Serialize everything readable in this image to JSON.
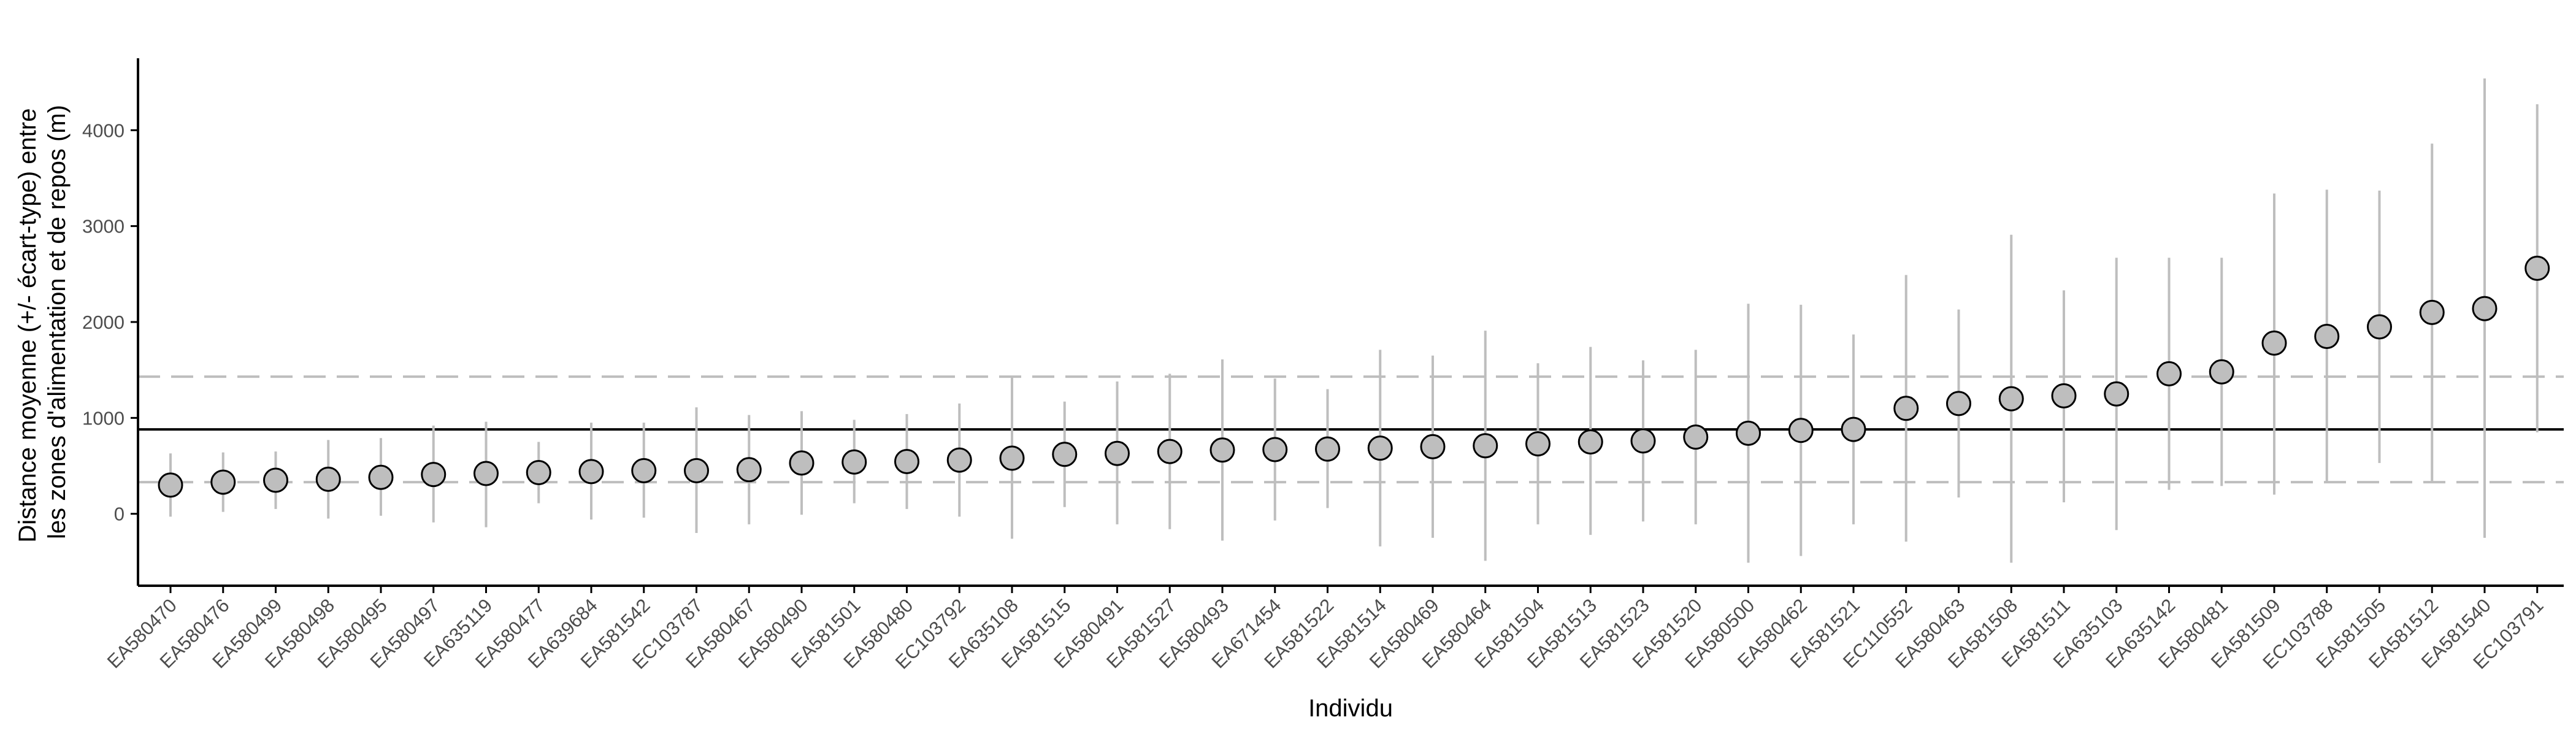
{
  "chart_data": {
    "type": "scatter",
    "xlabel": "Individu",
    "ylabel": "Distance moyenne (+/- écart-type) entre les zones d'alimentation et de repos (m)",
    "ylabel_lines": [
      "Distance moyenne (+/- écart-type) entre",
      "les zones d'alimentation et de repos (m)"
    ],
    "ylim": [
      -750,
      4750
    ],
    "yticks": [
      0,
      1000,
      2000,
      3000,
      4000
    ],
    "grid": false,
    "legend": "none",
    "reference_lines": {
      "mean": 880,
      "lower_dashed": 330,
      "upper_dashed": 1430
    },
    "colors": {
      "point_fill": "#bebebe",
      "point_stroke": "#000000",
      "errorbar": "#bebebe",
      "mean_line": "#000000",
      "dashed_line": "#bebebe",
      "axis": "#000000",
      "tick_label": "#4d4d4d"
    },
    "categories": [
      "EA580470",
      "EA580476",
      "EA580499",
      "EA580498",
      "EA580495",
      "EA580497",
      "EA635119",
      "EA580477",
      "EA639684",
      "EA581542",
      "EC103787",
      "EA580467",
      "EA580490",
      "EA581501",
      "EA580480",
      "EC103792",
      "EA635108",
      "EA581515",
      "EA580491",
      "EA581527",
      "EA580493",
      "EA671454",
      "EA581522",
      "EA581514",
      "EA580469",
      "EA580464",
      "EA581504",
      "EA581513",
      "EA581523",
      "EA581520",
      "EA580500",
      "EA580462",
      "EA581521",
      "EC110552",
      "EA580463",
      "EA581508",
      "EA581511",
      "EA635103",
      "EA635142",
      "EA580481",
      "EA581509",
      "EC103788",
      "EA581505",
      "EA581512",
      "EA581540",
      "EC103791"
    ],
    "values": [
      300,
      330,
      350,
      360,
      380,
      410,
      420,
      430,
      440,
      450,
      450,
      460,
      530,
      540,
      545,
      560,
      580,
      620,
      630,
      650,
      665,
      670,
      675,
      685,
      700,
      710,
      730,
      750,
      760,
      800,
      840,
      870,
      880,
      1100,
      1150,
      1200,
      1230,
      1250,
      1460,
      1480,
      1780,
      1850,
      1950,
      2100,
      2140,
      2560
    ],
    "lower": [
      -30,
      20,
      50,
      -50,
      -20,
      -90,
      -140,
      110,
      -60,
      -40,
      -200,
      -110,
      -10,
      110,
      50,
      -30,
      -260,
      70,
      -110,
      -160,
      -280,
      -70,
      60,
      -340,
      -250,
      -490,
      -110,
      -220,
      -80,
      -110,
      -510,
      -440,
      -110,
      -290,
      170,
      -510,
      120,
      -170,
      250,
      290,
      200,
      330,
      530,
      340,
      -250,
      850
    ],
    "upper": [
      630,
      640,
      650,
      770,
      790,
      920,
      960,
      750,
      950,
      950,
      1110,
      1030,
      1070,
      980,
      1040,
      1150,
      1430,
      1170,
      1380,
      1460,
      1610,
      1410,
      1300,
      1710,
      1650,
      1910,
      1570,
      1740,
      1600,
      1710,
      2190,
      2180,
      1870,
      2490,
      2130,
      2910,
      2330,
      2670,
      2670,
      2670,
      3340,
      3380,
      3370,
      3860,
      4540,
      4270
    ]
  }
}
